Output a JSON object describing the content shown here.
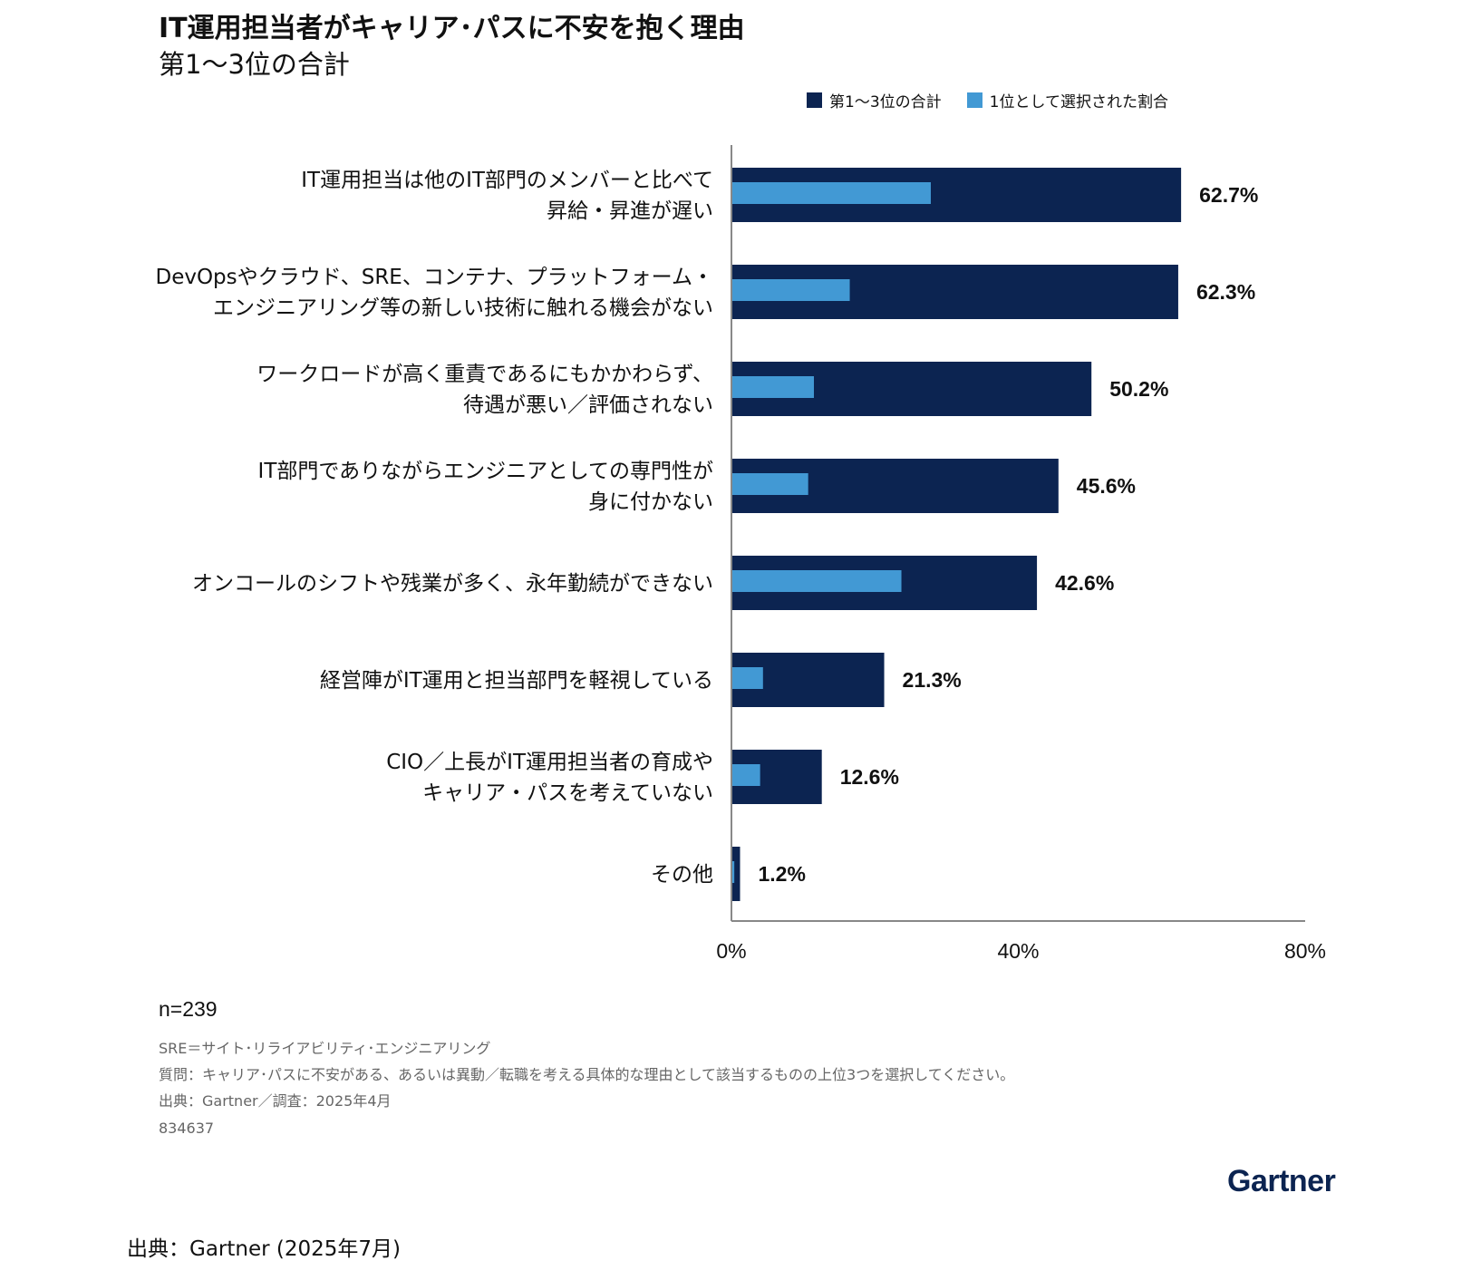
{
  "header": {
    "title": "IT運用担当者がキャリア･パスに不安を抱く理由",
    "subtitle": "第1～3位の合計"
  },
  "legend": {
    "items": [
      {
        "label": "第1～3位の合計",
        "color": "#0c2451"
      },
      {
        "label": "1位として選択された割合",
        "color": "#4299d4"
      }
    ]
  },
  "chart_data": {
    "type": "bar",
    "orientation": "horizontal",
    "categories": [
      [
        "IT運用担当は他のIT部門のメンバーと比べて",
        "昇給・昇進が遅い"
      ],
      [
        "DevOpsやクラウド、SRE、コンテナ、プラットフォーム・",
        "エンジニアリング等の新しい技術に触れる機会がない"
      ],
      [
        "ワークロードが高く重責であるにもかかわらず、",
        "待遇が悪い／評価されない"
      ],
      [
        "IT部門でありながらエンジニアとしての専門性が",
        "身に付かない"
      ],
      [
        "オンコールのシフトや残業が多く、永年勤続ができない"
      ],
      [
        "経営陣がIT運用と担当部門を軽視している"
      ],
      [
        "CIO／上長がIT運用担当者の育成や",
        "キャリア・パスを考えていない"
      ],
      [
        "その他"
      ]
    ],
    "series": [
      {
        "name": "第1～3位の合計",
        "values": [
          62.7,
          62.3,
          50.2,
          45.6,
          42.6,
          21.3,
          12.6,
          1.2
        ]
      },
      {
        "name": "1位として選択された割合",
        "values": [
          27.8,
          16.5,
          11.5,
          10.7,
          23.7,
          4.4,
          4.0,
          0.4
        ]
      }
    ],
    "value_labels": [
      "62.7%",
      "62.3%",
      "50.2%",
      "45.6%",
      "42.6%",
      "21.3%",
      "12.6%",
      "1.2%"
    ],
    "xlim": [
      0,
      80
    ],
    "xticks": [
      0,
      40,
      80
    ],
    "xtick_labels": [
      "0%",
      "40%",
      "80%"
    ],
    "grid": false,
    "legend_position": "top-right"
  },
  "footer": {
    "n": "n=239",
    "notes": [
      "SRE＝サイト･リライアビリティ･エンジニアリング",
      "質問：キャリア･パスに不安がある、あるいは異動／転職を考える具体的な理由として該当するものの上位3つを選択してください。",
      "出典：Gartner／調査：2025年4月",
      "834637"
    ],
    "logo": "Gartner",
    "source": "出典：Gartner (2025年7月)"
  }
}
